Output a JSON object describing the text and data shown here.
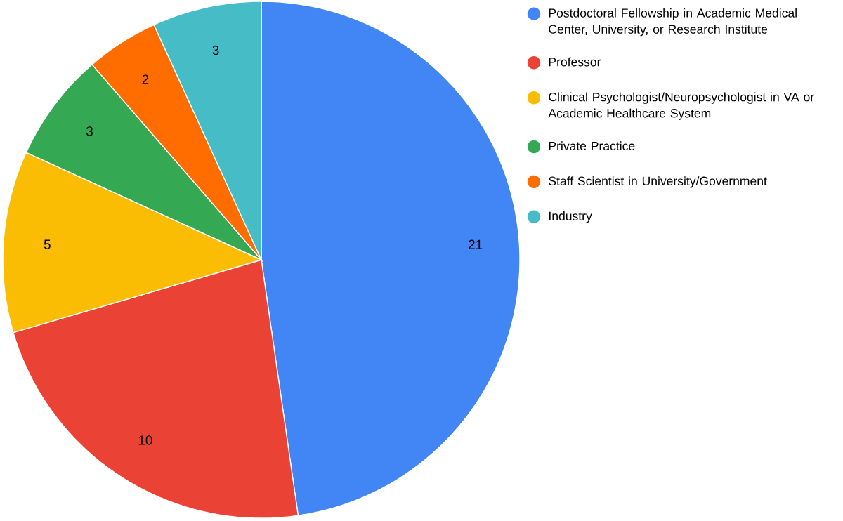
{
  "chart_data": {
    "type": "pie",
    "categories": [
      "Postdoctoral Fellowship in Academic Medical Center, University, or Research Institute",
      "Professor",
      "Clinical Psychologist/Neuropsychologist in VA or Academic Healthcare System",
      "Private Practice",
      "Staff Scientist in University/Government",
      "Industry"
    ],
    "values": [
      21,
      10,
      5,
      3,
      2,
      3
    ],
    "colors": [
      "#4285f4",
      "#ea4335",
      "#fbbc04",
      "#34a853",
      "#ff6d01",
      "#46bdc6"
    ],
    "data_labels": true,
    "legend": "right"
  }
}
